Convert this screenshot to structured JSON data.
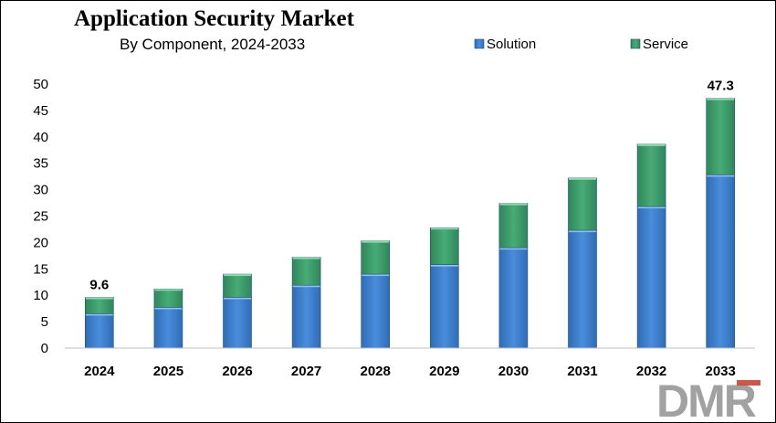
{
  "chart_data": {
    "type": "bar",
    "stacked": true,
    "title": "Application Security Market",
    "subtitle": "By Component,  2024-2033",
    "xlabel": "",
    "ylabel": "",
    "categories": [
      "2024",
      "2025",
      "2026",
      "2027",
      "2028",
      "2029",
      "2030",
      "2031",
      "2032",
      "2033"
    ],
    "series": [
      {
        "name": "Solution",
        "color": "#3c7dc9",
        "values": [
          6.5,
          7.7,
          9.6,
          11.9,
          14.0,
          15.8,
          19.0,
          22.3,
          26.8,
          32.8
        ]
      },
      {
        "name": "Service",
        "color": "#3b9a66",
        "values": [
          3.1,
          3.5,
          4.4,
          5.3,
          6.3,
          7.0,
          8.4,
          9.9,
          11.8,
          14.5
        ]
      }
    ],
    "ylim": [
      0,
      50
    ],
    "yticks": [
      0,
      5,
      10,
      15,
      20,
      25,
      30,
      35,
      40,
      45,
      50
    ],
    "data_labels": [
      {
        "category": "2024",
        "text": "9.6"
      },
      {
        "category": "2033",
        "text": "47.3"
      }
    ],
    "legend": "top-right",
    "grid": false
  },
  "watermark": {
    "text": "DMR"
  }
}
